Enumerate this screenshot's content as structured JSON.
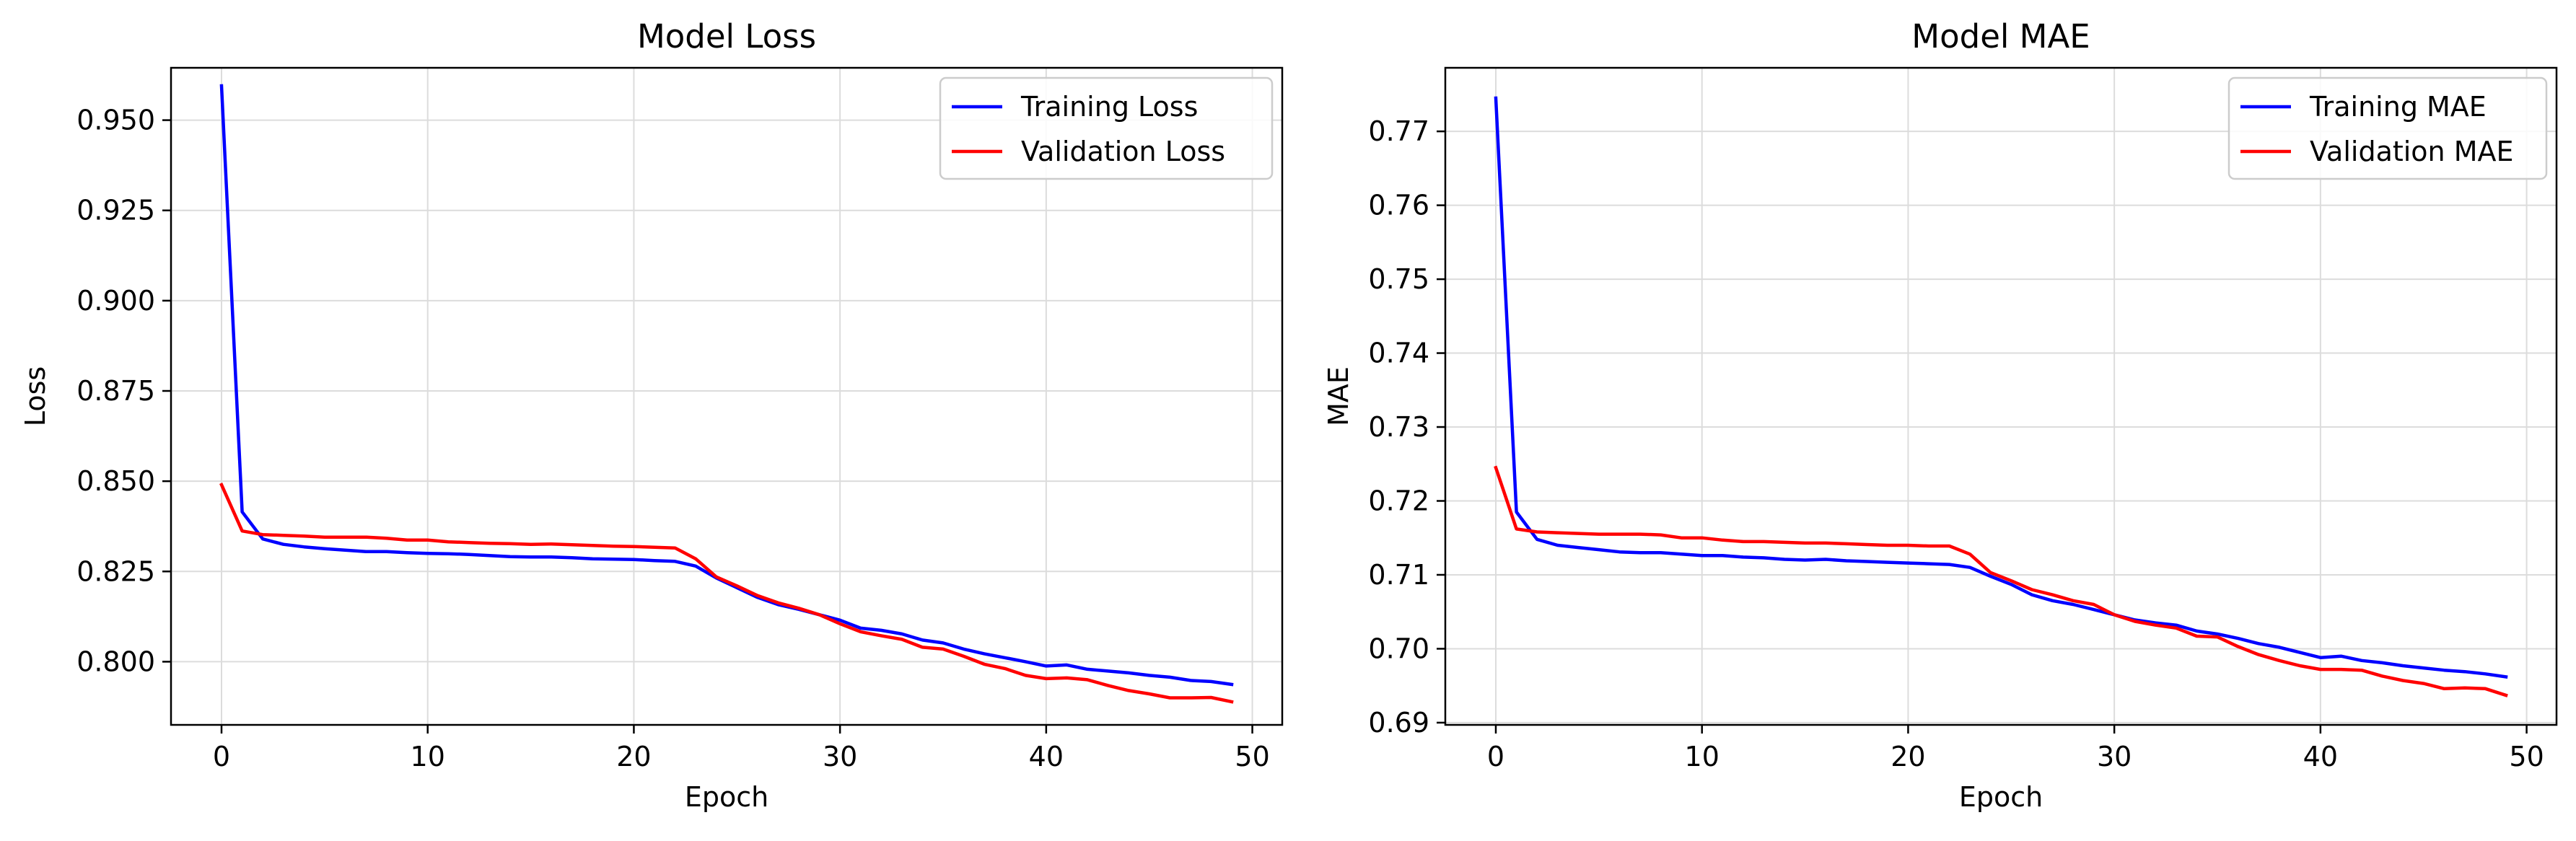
{
  "chart_data": [
    {
      "type": "line",
      "title": "Model Loss",
      "xlabel": "Epoch",
      "ylabel": "Loss",
      "xlim": [
        -2.45,
        51.45
      ],
      "ylim": [
        0.7825,
        0.9645
      ],
      "xticks": [
        0,
        10,
        20,
        30,
        40,
        50
      ],
      "yticks": [
        0.8,
        0.825,
        0.85,
        0.875,
        0.9,
        0.925,
        0.95
      ],
      "ytick_labels": [
        "0.800",
        "0.825",
        "0.850",
        "0.875",
        "0.900",
        "0.925",
        "0.950"
      ],
      "grid": true,
      "legend_position": "upper right",
      "x": [
        0,
        1,
        2,
        3,
        4,
        5,
        6,
        7,
        8,
        9,
        10,
        11,
        12,
        13,
        14,
        15,
        16,
        17,
        18,
        19,
        20,
        21,
        22,
        23,
        24,
        25,
        26,
        27,
        28,
        29,
        30,
        31,
        32,
        33,
        34,
        35,
        36,
        37,
        38,
        39,
        40,
        41,
        42,
        43,
        44,
        45,
        46,
        47,
        48,
        49
      ],
      "series": [
        {
          "name": "Training Loss",
          "color": "#0000ff",
          "values": [
            0.9595,
            0.8415,
            0.834,
            0.8325,
            0.8318,
            0.8313,
            0.8309,
            0.8305,
            0.8305,
            0.8302,
            0.83,
            0.8299,
            0.8297,
            0.8294,
            0.8291,
            0.829,
            0.829,
            0.8288,
            0.8285,
            0.8284,
            0.8283,
            0.828,
            0.8278,
            0.8265,
            0.8232,
            0.8205,
            0.8178,
            0.8158,
            0.8145,
            0.813,
            0.8115,
            0.8093,
            0.8087,
            0.8077,
            0.806,
            0.8052,
            0.8035,
            0.8022,
            0.8011,
            0.8,
            0.7988,
            0.7991,
            0.7979,
            0.7974,
            0.7969,
            0.7962,
            0.7957,
            0.7948,
            0.7945,
            0.7937
          ]
        },
        {
          "name": "Validation Loss",
          "color": "#ff0000",
          "values": [
            0.849,
            0.8362,
            0.8352,
            0.835,
            0.8348,
            0.8345,
            0.8345,
            0.8345,
            0.8342,
            0.8337,
            0.8337,
            0.8332,
            0.833,
            0.8328,
            0.8327,
            0.8325,
            0.8326,
            0.8324,
            0.8322,
            0.832,
            0.8319,
            0.8317,
            0.8315,
            0.8285,
            0.8235,
            0.821,
            0.8183,
            0.8163,
            0.8148,
            0.813,
            0.8105,
            0.8083,
            0.8072,
            0.8062,
            0.804,
            0.8035,
            0.8015,
            0.7993,
            0.7981,
            0.7962,
            0.7953,
            0.7955,
            0.795,
            0.7934,
            0.792,
            0.7911,
            0.79,
            0.79,
            0.7901,
            0.7889
          ]
        }
      ]
    },
    {
      "type": "line",
      "title": "Model MAE",
      "xlabel": "Epoch",
      "ylabel": "MAE",
      "xlim": [
        -2.45,
        51.45
      ],
      "ylim": [
        0.6897,
        0.7786
      ],
      "xticks": [
        0,
        10,
        20,
        30,
        40,
        50
      ],
      "yticks": [
        0.69,
        0.7,
        0.71,
        0.72,
        0.73,
        0.74,
        0.75,
        0.76,
        0.77
      ],
      "ytick_labels": [
        "0.69",
        "0.70",
        "0.71",
        "0.72",
        "0.73",
        "0.74",
        "0.75",
        "0.76",
        "0.77"
      ],
      "grid": true,
      "legend_position": "upper right",
      "x": [
        0,
        1,
        2,
        3,
        4,
        5,
        6,
        7,
        8,
        9,
        10,
        11,
        12,
        13,
        14,
        15,
        16,
        17,
        18,
        19,
        20,
        21,
        22,
        23,
        24,
        25,
        26,
        27,
        28,
        29,
        30,
        31,
        32,
        33,
        34,
        35,
        36,
        37,
        38,
        39,
        40,
        41,
        42,
        43,
        44,
        45,
        46,
        47,
        48,
        49
      ],
      "series": [
        {
          "name": "Training MAE",
          "color": "#0000ff",
          "values": [
            0.7745,
            0.7185,
            0.7148,
            0.714,
            0.7137,
            0.7134,
            0.7131,
            0.713,
            0.713,
            0.7128,
            0.7126,
            0.7126,
            0.7124,
            0.7123,
            0.7121,
            0.712,
            0.7121,
            0.7119,
            0.7118,
            0.7117,
            0.7116,
            0.7115,
            0.7114,
            0.711,
            0.7098,
            0.7087,
            0.7073,
            0.7065,
            0.706,
            0.7053,
            0.7046,
            0.7039,
            0.7035,
            0.7032,
            0.7024,
            0.702,
            0.7014,
            0.7007,
            0.7002,
            0.6995,
            0.6988,
            0.699,
            0.6984,
            0.6981,
            0.6977,
            0.6974,
            0.6971,
            0.6969,
            0.6966,
            0.6962
          ]
        },
        {
          "name": "Validation MAE",
          "color": "#ff0000",
          "values": [
            0.7245,
            0.7162,
            0.7158,
            0.7157,
            0.7156,
            0.7155,
            0.7155,
            0.7155,
            0.7154,
            0.715,
            0.715,
            0.7147,
            0.7145,
            0.7145,
            0.7144,
            0.7143,
            0.7143,
            0.7142,
            0.7141,
            0.714,
            0.714,
            0.7139,
            0.7139,
            0.7128,
            0.7103,
            0.7092,
            0.708,
            0.7073,
            0.7065,
            0.706,
            0.7046,
            0.7037,
            0.7032,
            0.7028,
            0.7017,
            0.7016,
            0.7003,
            0.6992,
            0.6984,
            0.6977,
            0.6972,
            0.6972,
            0.6971,
            0.6963,
            0.6957,
            0.6953,
            0.6946,
            0.6947,
            0.6946,
            0.6937
          ]
        }
      ]
    }
  ]
}
